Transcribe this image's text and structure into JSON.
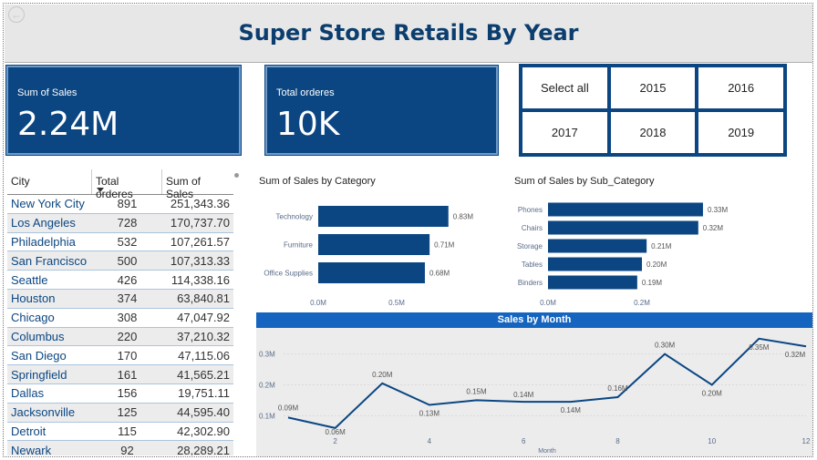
{
  "header": {
    "title": "Super Store Retails By Year"
  },
  "cards": {
    "sales": {
      "label": "Sum of Sales",
      "value": "2.24M"
    },
    "orders": {
      "label": "Total orderes",
      "value": "10K"
    }
  },
  "year_slicer": {
    "options": [
      "Select all",
      "2015",
      "2016",
      "2017",
      "2018",
      "2019"
    ]
  },
  "city_table": {
    "columns": [
      "City",
      "Total orderes",
      "Sum of Sales"
    ],
    "rows": [
      {
        "city": "New York City",
        "orders": "891",
        "sales": "251,343.36"
      },
      {
        "city": "Los Angeles",
        "orders": "728",
        "sales": "170,737.70"
      },
      {
        "city": "Philadelphia",
        "orders": "532",
        "sales": "107,261.57"
      },
      {
        "city": "San Francisco",
        "orders": "500",
        "sales": "107,313.33"
      },
      {
        "city": "Seattle",
        "orders": "426",
        "sales": "114,338.16"
      },
      {
        "city": "Houston",
        "orders": "374",
        "sales": "63,840.81"
      },
      {
        "city": "Chicago",
        "orders": "308",
        "sales": "47,047.92"
      },
      {
        "city": "Columbus",
        "orders": "220",
        "sales": "37,210.32"
      },
      {
        "city": "San Diego",
        "orders": "170",
        "sales": "47,115.06"
      },
      {
        "city": "Springfield",
        "orders": "161",
        "sales": "41,565.21"
      },
      {
        "city": "Dallas",
        "orders": "156",
        "sales": "19,751.11"
      },
      {
        "city": "Jacksonville",
        "orders": "125",
        "sales": "44,595.40"
      },
      {
        "city": "Detroit",
        "orders": "115",
        "sales": "42,302.90"
      },
      {
        "city": "Newark",
        "orders": "92",
        "sales": "28,289.21"
      }
    ]
  },
  "chart_data": [
    {
      "type": "bar",
      "orientation": "horizontal",
      "title": "Sum of Sales by Category",
      "categories": [
        "Technology",
        "Furniture",
        "Office Supplies"
      ],
      "values": [
        0.83,
        0.71,
        0.68
      ],
      "data_labels": [
        "0.83M",
        "0.71M",
        "0.68M"
      ],
      "xlim": [
        0,
        1
      ],
      "xticks": [
        "0.0M",
        "0.5M"
      ],
      "color": "#0b4683"
    },
    {
      "type": "bar",
      "orientation": "horizontal",
      "title": "Sum of Sales by Sub_Category",
      "categories": [
        "Phones",
        "Chairs",
        "Storage",
        "Tables",
        "Binders"
      ],
      "values": [
        0.33,
        0.32,
        0.21,
        0.2,
        0.19
      ],
      "data_labels": [
        "0.33M",
        "0.32M",
        "0.21M",
        "0.20M",
        "0.19M"
      ],
      "xlim": [
        0,
        0.4
      ],
      "xticks": [
        "0.0M",
        "0.2M"
      ],
      "color": "#0b4683"
    },
    {
      "type": "line",
      "title": "Sales by Month",
      "xlabel": "Month",
      "x": [
        1,
        2,
        3,
        4,
        5,
        6,
        7,
        8,
        9,
        10,
        11,
        12
      ],
      "values": [
        0.094,
        0.06,
        0.205,
        0.135,
        0.15,
        0.145,
        0.145,
        0.16,
        0.3,
        0.2,
        0.35,
        0.325
      ],
      "data_labels": [
        "0.09M",
        "0.06M",
        "0.20M",
        "0.13M",
        "0.15M",
        "0.14M",
        "0.14M",
        "0.16M",
        "0.30M",
        "0.20M",
        "0.35M",
        "0.32M"
      ],
      "xticks": [
        "2",
        "4",
        "6",
        "8",
        "10",
        "12"
      ],
      "yticks": [
        "0.1M",
        "0.2M",
        "0.3M"
      ],
      "ylim": [
        0.03,
        0.37
      ],
      "color": "#0b4683"
    }
  ]
}
